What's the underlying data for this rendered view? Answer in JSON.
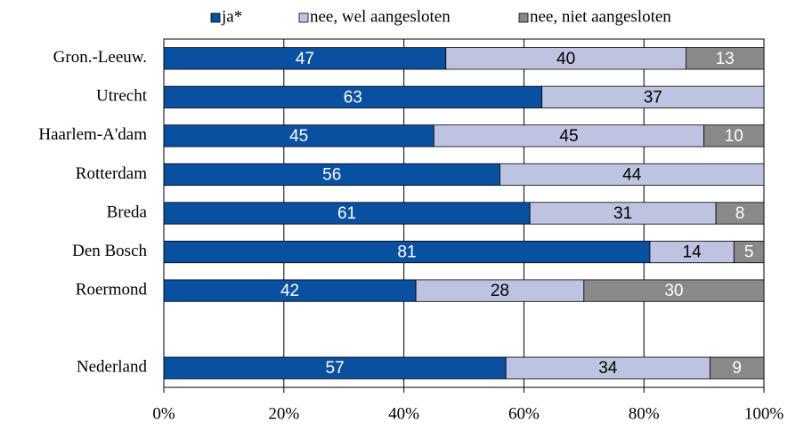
{
  "chart_data": {
    "type": "stacked-bar-horizontal",
    "categories": [
      "Gron.-Leeuw.",
      "Utrecht",
      "Haarlem-A'dam",
      "Rotterdam",
      "Breda",
      "Den Bosch",
      "Roermond",
      null,
      "Nederland"
    ],
    "series": [
      {
        "name": "ja*",
        "color": "#0a50a1",
        "values": [
          47,
          63,
          45,
          56,
          61,
          81,
          42,
          null,
          57
        ]
      },
      {
        "name": "nee, wel aangesloten",
        "color": "#bfc3e2",
        "values": [
          40,
          37,
          45,
          44,
          31,
          14,
          28,
          null,
          34
        ]
      },
      {
        "name": "nee, niet aangesloten",
        "color": "#898989",
        "values": [
          13,
          null,
          10,
          null,
          8,
          5,
          30,
          null,
          9
        ]
      }
    ],
    "xlim": [
      0,
      100
    ],
    "xticks": [
      {
        "value": 0,
        "label": "0%"
      },
      {
        "value": 20,
        "label": "20%"
      },
      {
        "value": 40,
        "label": "40%"
      },
      {
        "value": 60,
        "label": "60%"
      },
      {
        "value": 80,
        "label": "80%"
      },
      {
        "value": 100,
        "label": "100%"
      }
    ],
    "grid": true,
    "legend": "top"
  }
}
